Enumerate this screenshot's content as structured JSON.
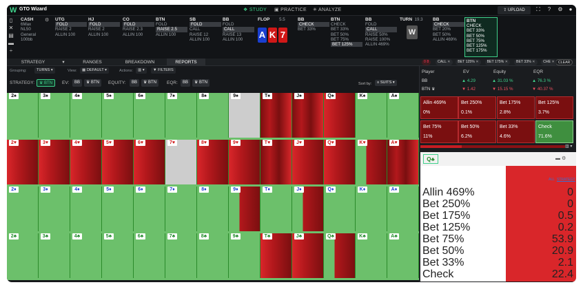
{
  "app": {
    "title": "GTO Wizard"
  },
  "nav": {
    "study": "STUDY",
    "practice": "PRACTICE",
    "analyze": "ANALYZE"
  },
  "header": {
    "upload": "UPLOAD"
  },
  "game": {
    "title": "CASH",
    "lines": [
      "6Max",
      "NL50",
      "General",
      "100bb"
    ]
  },
  "positions": [
    {
      "name": "UTG",
      "actions": [
        "FOLD",
        "RAISE 2",
        "ALLIN 100"
      ],
      "selected": 0
    },
    {
      "name": "HJ",
      "actions": [
        "FOLD",
        "RAISE 2",
        "ALLIN 100"
      ],
      "selected": 0
    },
    {
      "name": "CO",
      "actions": [
        "FOLD",
        "RAISE 2.3",
        "ALLIN 100"
      ],
      "selected": 0
    },
    {
      "name": "BTN",
      "actions": [
        "FOLD",
        "RAISE 2.5",
        "ALLIN 100"
      ],
      "selected": 1
    },
    {
      "name": "SB",
      "actions": [
        "FOLD",
        "CALL",
        "RAISE 12",
        "ALLIN 100"
      ],
      "selected": 0
    },
    {
      "name": "BB",
      "actions": [
        "FOLD",
        "CALL",
        "RAISE 13",
        "ALLIN 100"
      ],
      "selected": 1
    }
  ],
  "flop": {
    "label": "FLOP",
    "pot": "5.5",
    "cards": [
      "A",
      "K",
      "7"
    ]
  },
  "street_cols": [
    {
      "name": "BB",
      "actions": [
        "CHECK",
        "BET 33%"
      ],
      "selected": 0
    },
    {
      "name": "BTN",
      "actions": [
        "CHECK",
        "BET 33%",
        "BET 50%",
        "BET 75%",
        "BET 125%"
      ],
      "selected": 4
    },
    {
      "name": "BB",
      "actions": [
        "FOLD",
        "CALL",
        "RAISE 50%",
        "RAISE 100%",
        "ALLIN 469%"
      ],
      "selected": 1
    }
  ],
  "turn": {
    "label": "TURN",
    "pot": "19.3",
    "card": "W"
  },
  "turn_cols": [
    {
      "name": "BB",
      "actions": [
        "CHECK",
        "BET 20%",
        "BET 50%",
        "ALLIN 469%"
      ],
      "selected": 0
    },
    {
      "name": "BTN",
      "actions": [
        "CHECK",
        "BET 33%",
        "BET 50%",
        "BET 75%",
        "BET 125%",
        "BET 175%"
      ],
      "selected": -1
    }
  ],
  "tabs": [
    "STRATEGY",
    "RANGES",
    "BREAKDOWN",
    "REPORTS"
  ],
  "filter_chips": [
    "CALL",
    "BET 125%",
    "BET 175%",
    "BET 33%",
    "CHE"
  ],
  "filter_count": "0 8",
  "clear_label": "CLEAR",
  "toolbar": {
    "grouping_label": "Grouping:",
    "grouping_value": "TURNS",
    "view_label": "View:",
    "view_value": "DEFAULT",
    "actions_label": "Actions:",
    "filters_label": "FILTERS"
  },
  "toolbar2": {
    "strategy_label": "STRATEGY:",
    "strategy_value": "BTN",
    "ev_label": "EV:",
    "ev_a": "BB",
    "ev_b": "BTN",
    "equity_label": "EQUITY:",
    "eq_a": "BB",
    "eq_b": "BTN",
    "eqr_label": "EQR:",
    "eqr_a": "BB",
    "eqr_b": "BTN",
    "sortby_label": "Sort by:",
    "sortby_value": "SUITS"
  },
  "stats": {
    "headers": [
      "Player",
      "EV",
      "Equity",
      "EQR"
    ],
    "rows": [
      {
        "player": "BB",
        "ev": "4.29",
        "equity": "31.03 %",
        "eqr": "76.3 %"
      },
      {
        "player": "BTN",
        "ev": "1.42",
        "equity": "15.15 %",
        "eqr": "40.37 %"
      }
    ]
  },
  "action_boxes": [
    {
      "label": "Allin 469%",
      "pct": "0%"
    },
    {
      "label": "Bet 250%",
      "pct": "0.1%"
    },
    {
      "label": "Bet 175%",
      "pct": "2.8%"
    },
    {
      "label": "Bet 125%",
      "pct": "3.7%"
    },
    {
      "label": "Bet 75%",
      "pct": "11%"
    },
    {
      "label": "Bet 50%",
      "pct": "6.2%"
    },
    {
      "label": "Bet 33%",
      "pct": "4.6%"
    },
    {
      "label": "Check",
      "pct": "71.6%"
    }
  ],
  "detail": {
    "card": "Q♣",
    "tab_all": "ALL",
    "tab_strategy": "STRATEGY",
    "rows": [
      {
        "name": "Allin 469%",
        "value": "0"
      },
      {
        "name": "Bet 250%",
        "value": "0"
      },
      {
        "name": "Bet 175%",
        "value": "0.5"
      },
      {
        "name": "Bet 125%",
        "value": "0.2"
      },
      {
        "name": "Bet 75%",
        "value": "53.9"
      },
      {
        "name": "Bet 50%",
        "value": "20.9"
      },
      {
        "name": "Bet 33%",
        "value": "2.1"
      },
      {
        "name": "Check",
        "value": "22.4"
      }
    ]
  },
  "ranks": [
    "2",
    "3",
    "4",
    "5",
    "6",
    "7",
    "8",
    "9",
    "T",
    "J",
    "Q",
    "K",
    "A"
  ],
  "suits": [
    {
      "sym": "♠",
      "color": "#111111"
    },
    {
      "sym": "♥",
      "color": "#d01818"
    },
    {
      "sym": "♦",
      "color": "#1a3fd0"
    },
    {
      "sym": "♣",
      "color": "#1f8a2a"
    }
  ],
  "colors": {
    "check": "#6cc06b",
    "bet_dark": "#7a0f10",
    "bet_red": "#d9262a",
    "bet_mid": "#b3181c",
    "grey": "#cdcdcd",
    "accent": "#3fd28b"
  },
  "cell_mix": [
    [
      "g",
      "g",
      "g",
      "g",
      "g",
      "g",
      "g",
      "x",
      "rs",
      "rs",
      "r",
      "g",
      "g"
    ],
    [
      "r",
      "r",
      "r",
      "r",
      "r",
      "x",
      "r",
      "r",
      "rs",
      "r",
      "r",
      "rp",
      "rs"
    ],
    [
      "g",
      "g",
      "g",
      "g",
      "g",
      "g",
      "g",
      "rp",
      "g",
      "rp",
      "g",
      "g",
      "g"
    ],
    [
      "g",
      "g",
      "g",
      "g",
      "g",
      "g",
      "g",
      "g",
      "r",
      "r",
      "rp",
      "g",
      "g"
    ]
  ]
}
